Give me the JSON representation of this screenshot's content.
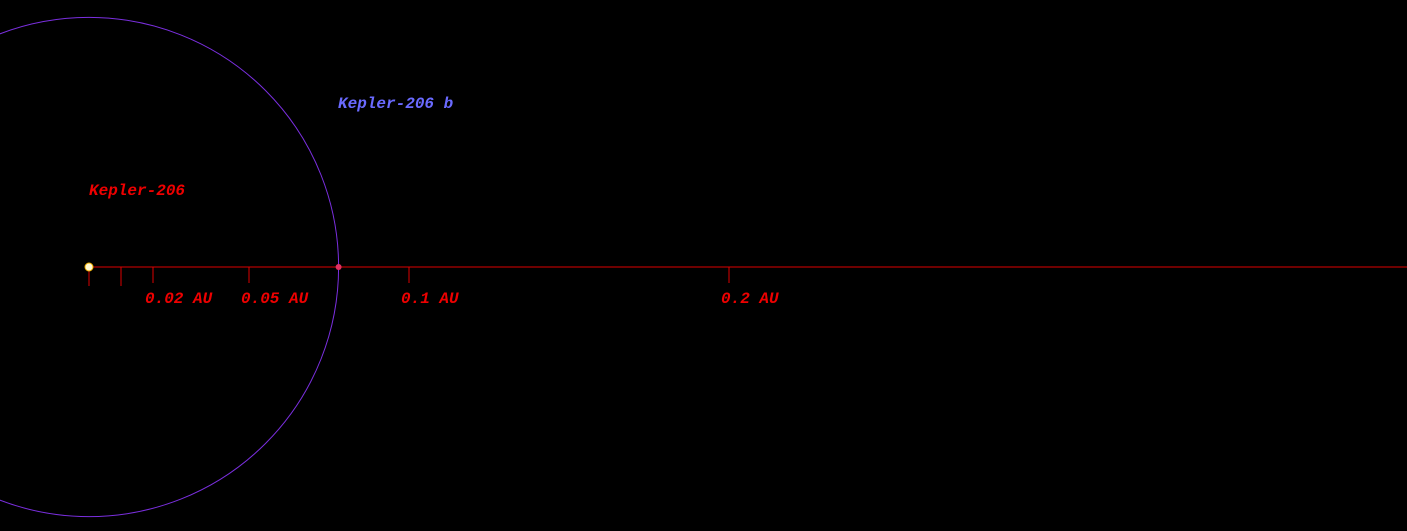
{
  "star": {
    "name": "Kepler-206"
  },
  "planet": {
    "name": "Kepler-206 b",
    "orbit_au": 0.078
  },
  "scale": {
    "ticks": [
      {
        "value": 0,
        "label": null
      },
      {
        "value": 0.01,
        "label": null
      },
      {
        "value": 0.02,
        "label": "0.02 AU"
      },
      {
        "value": 0.05,
        "label": "0.05 AU"
      },
      {
        "value": 0.1,
        "label": "0.1 AU"
      },
      {
        "value": 0.2,
        "label": "0.2 AU"
      }
    ]
  }
}
